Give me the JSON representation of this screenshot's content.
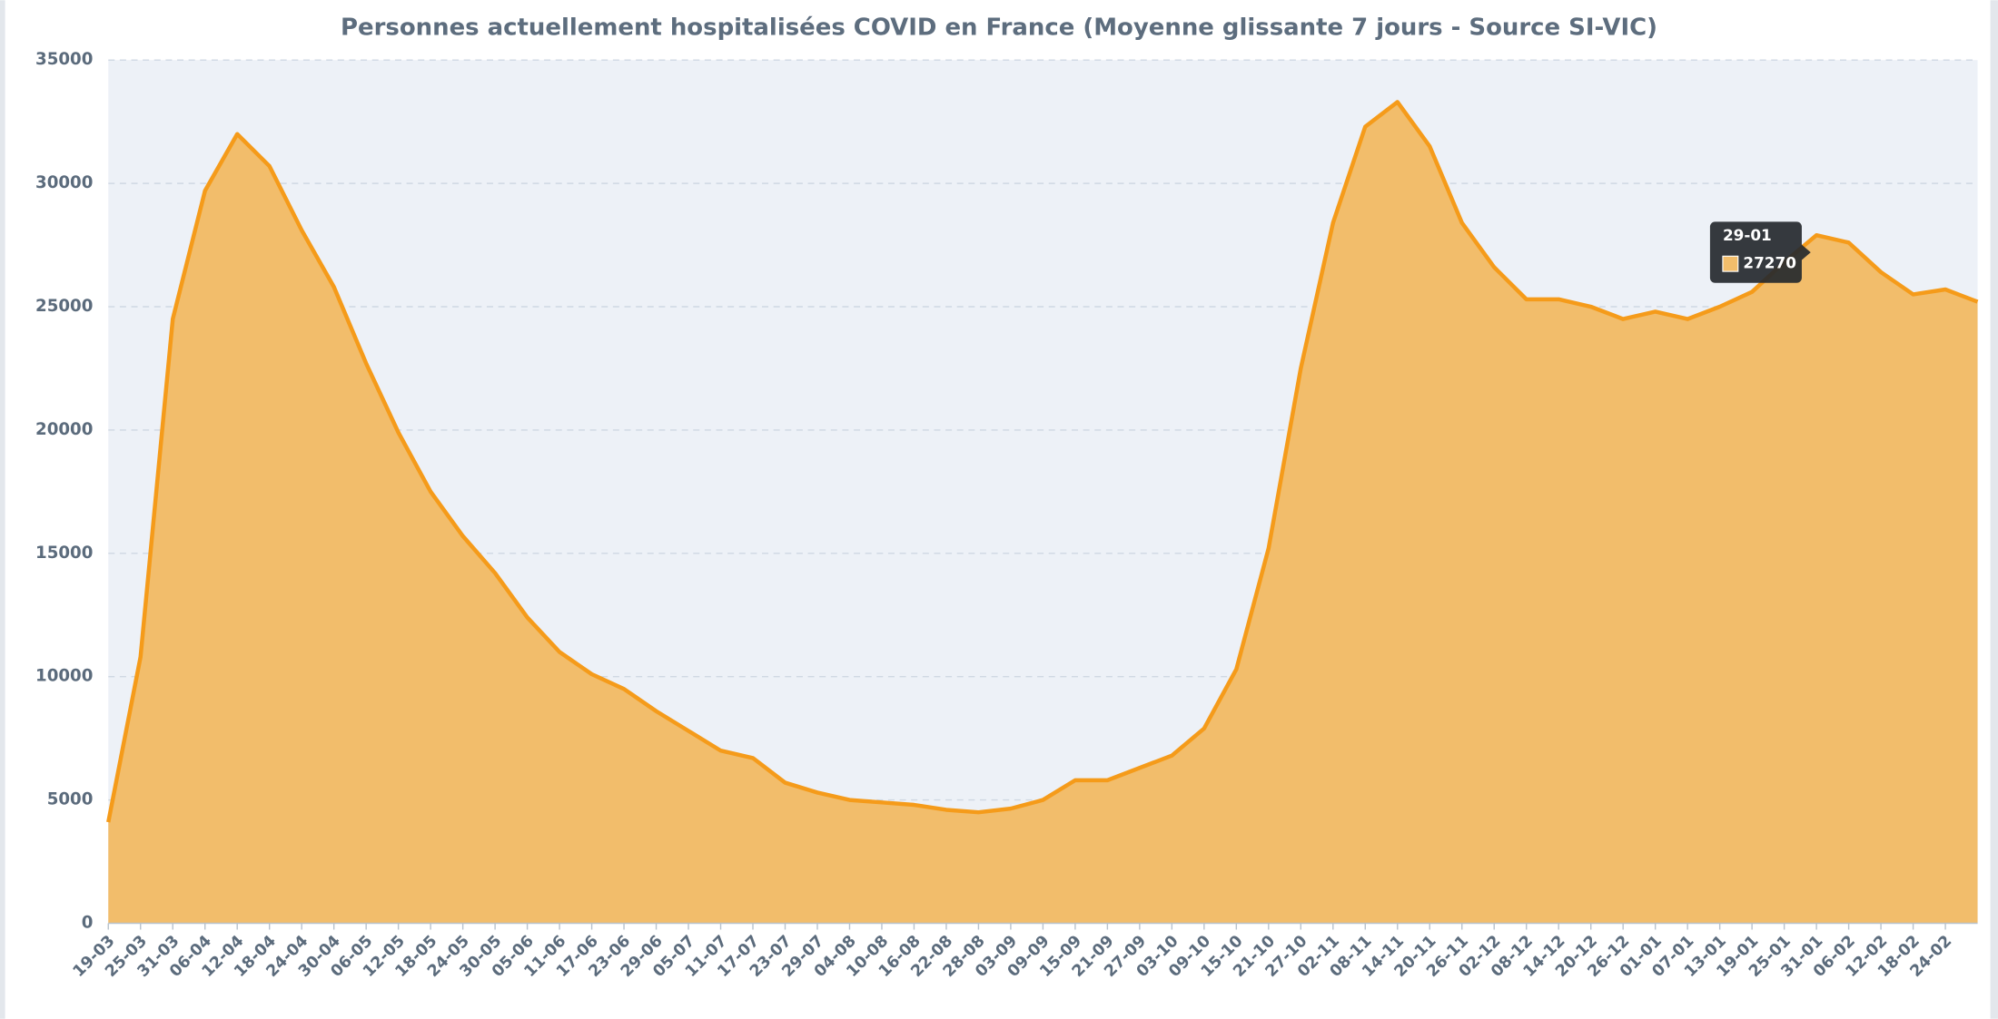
{
  "chart_data": {
    "type": "area",
    "title": "Personnes actuellement hospitalisées COVID en France (Moyenne glissante 7 jours - Source SI-VIC)",
    "categories": [
      "19-03",
      "25-03",
      "31-03",
      "06-04",
      "12-04",
      "18-04",
      "24-04",
      "30-04",
      "06-05",
      "12-05",
      "18-05",
      "24-05",
      "30-05",
      "05-06",
      "11-06",
      "17-06",
      "23-06",
      "29-06",
      "05-07",
      "11-07",
      "17-07",
      "23-07",
      "29-07",
      "04-08",
      "10-08",
      "16-08",
      "22-08",
      "28-08",
      "03-09",
      "09-09",
      "15-09",
      "21-09",
      "27-09",
      "03-10",
      "09-10",
      "15-10",
      "21-10",
      "27-10",
      "02-11",
      "08-11",
      "14-11",
      "20-11",
      "26-11",
      "02-12",
      "08-12",
      "14-12",
      "20-12",
      "26-12",
      "01-01",
      "07-01",
      "13-01",
      "19-01",
      "25-01",
      "31-01",
      "06-02",
      "12-02",
      "18-02",
      "24-02",
      null
    ],
    "series": [
      {
        "name": null,
        "color": "#f59b1a",
        "fill": "#f2bd6b",
        "values": [
          4100,
          10800,
          24500,
          29700,
          32000,
          30700,
          28100,
          25800,
          22700,
          19900,
          17500,
          15700,
          14200,
          12400,
          11000,
          10100,
          9500,
          8600,
          7800,
          7000,
          6700,
          5700,
          5300,
          5000,
          4900,
          4800,
          4600,
          4500,
          4650,
          5000,
          5800,
          5800,
          6300,
          6800,
          7900,
          10300,
          15200,
          22500,
          28400,
          32300,
          33300,
          31500,
          28400,
          26600,
          25300,
          25300,
          25000,
          24500,
          24800,
          24500,
          25000,
          25600,
          26800,
          27900,
          27600,
          26400,
          25500,
          25700,
          25200
        ]
      }
    ],
    "ylim": [
      0,
      35000
    ],
    "yticks": [
      0,
      5000,
      10000,
      15000,
      20000,
      25000,
      30000,
      35000
    ],
    "grid": true,
    "tooltip": {
      "date": "29-01",
      "value": 27270
    }
  }
}
